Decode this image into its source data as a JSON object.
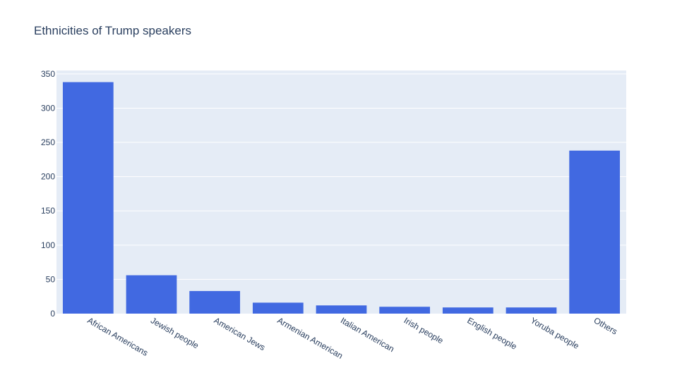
{
  "chart_data": {
    "type": "bar",
    "title": "Ethnicities of Trump speakers",
    "xlabel": "",
    "ylabel": "",
    "categories": [
      "African Americans",
      "Jewish people",
      "American Jews",
      "Armenian American",
      "Italian American",
      "Irish people",
      "English people",
      "Yoruba people",
      "Others"
    ],
    "values": [
      338,
      56,
      33,
      16,
      12,
      10,
      9,
      9,
      238
    ],
    "ylim": [
      0,
      355
    ],
    "yticks": [
      0,
      50,
      100,
      150,
      200,
      250,
      300,
      350
    ],
    "grid": true,
    "legend": "none",
    "colors": {
      "bar": "#4169e1",
      "plot_background": "#e5ecf6",
      "grid": "#ffffff",
      "text": "#2a3f5f"
    }
  }
}
